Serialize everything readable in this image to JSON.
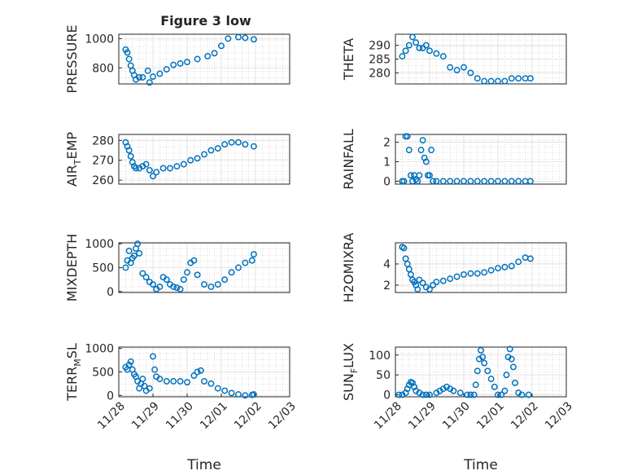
{
  "figure": {
    "title": "Figure 3 low"
  },
  "colors": {
    "marker": "#0072BD",
    "axis": "#262626",
    "grid": "#c6c6c6"
  },
  "chart_data": [
    {
      "type": "scatter",
      "id": "pressure",
      "title": "Figure 3 low",
      "ylabel": "PRESSURE",
      "ylabel_sub": "",
      "ylim": [
        690,
        1030
      ],
      "yticks": [
        800,
        1000
      ],
      "ytick_labels": [
        "800",
        "1000"
      ],
      "xlim": [
        "11/28",
        "12/02"
      ],
      "xticks": [],
      "xlabel": "",
      "grid": true,
      "series": [
        {
          "x": [
            "11/28",
            "11/28",
            "11/28",
            "11/28",
            "11/28",
            "11/28",
            "11/28",
            "11/28",
            "11/28",
            "11/29",
            "11/29",
            "11/29",
            "11/29",
            "11/29",
            "11/29",
            "11/30",
            "11/30",
            "11/30",
            "11/30",
            "12/01",
            "12/01",
            "12/01",
            "12/01",
            "12/02",
            "12/02"
          ],
          "xoff_days": [
            0.2,
            0.25,
            0.3,
            0.35,
            0.4,
            0.45,
            0.5,
            0.6,
            0.7,
            0.85,
            0.9,
            1.0,
            1.2,
            1.4,
            1.6,
            1.8,
            2.0,
            2.3,
            2.6,
            2.8,
            3.0,
            3.2,
            3.5,
            3.7,
            3.95
          ],
          "y": [
            925,
            905,
            860,
            815,
            780,
            750,
            720,
            735,
            735,
            780,
            700,
            740,
            760,
            790,
            820,
            830,
            840,
            860,
            880,
            900,
            950,
            1000,
            1010,
            1005,
            995
          ]
        }
      ]
    },
    {
      "type": "scatter",
      "id": "theta",
      "title": "",
      "ylabel": "THETA",
      "ylabel_sub": "",
      "ylim": [
        276,
        294
      ],
      "yticks": [
        280,
        285,
        290
      ],
      "ytick_labels": [
        "280",
        "285",
        "290"
      ],
      "xlim": [
        "11/28",
        "12/02"
      ],
      "xticks": [],
      "xlabel": "",
      "grid": true,
      "series": [
        {
          "xoff_days": [
            0.2,
            0.3,
            0.4,
            0.5,
            0.6,
            0.7,
            0.8,
            0.9,
            1.0,
            1.2,
            1.4,
            1.6,
            1.8,
            2.0,
            2.2,
            2.4,
            2.6,
            2.8,
            3.0,
            3.2,
            3.4,
            3.6,
            3.8,
            3.95
          ],
          "y": [
            286,
            288,
            290,
            293,
            291,
            289,
            289,
            290,
            288,
            287,
            286,
            282,
            281,
            282,
            280,
            278,
            277,
            277,
            277,
            277,
            278,
            278,
            278,
            278
          ]
        }
      ]
    },
    {
      "type": "scatter",
      "id": "airtemp",
      "title": "",
      "ylabel": "AIR",
      "ylabel_sub": "T",
      "ylabel_rest": "EMP",
      "ylim": [
        258,
        283
      ],
      "yticks": [
        260,
        270,
        280
      ],
      "ytick_labels": [
        "260",
        "270",
        "280"
      ],
      "xlim": [
        "11/28",
        "12/02"
      ],
      "xticks": [],
      "xlabel": "",
      "grid": true,
      "series": [
        {
          "xoff_days": [
            0.2,
            0.25,
            0.3,
            0.35,
            0.4,
            0.45,
            0.5,
            0.6,
            0.7,
            0.8,
            0.9,
            1.0,
            1.1,
            1.3,
            1.5,
            1.7,
            1.9,
            2.1,
            2.3,
            2.5,
            2.7,
            2.9,
            3.1,
            3.3,
            3.5,
            3.7,
            3.95
          ],
          "y": [
            279,
            277,
            275,
            272,
            269,
            267,
            266,
            266,
            267,
            268,
            265,
            262,
            264,
            266,
            266,
            267,
            268,
            270,
            271,
            273,
            275,
            276,
            278,
            279,
            279,
            278,
            277
          ]
        }
      ]
    },
    {
      "type": "scatter",
      "id": "rainfall",
      "title": "",
      "ylabel": "RAINFALL",
      "ylabel_sub": "",
      "ylim": [
        -0.15,
        2.4
      ],
      "yticks": [
        0,
        1,
        2
      ],
      "ytick_labels": [
        "0",
        "1",
        "2"
      ],
      "xlim": [
        "11/28",
        "12/02"
      ],
      "xticks": [],
      "xlabel": "",
      "grid": true,
      "series": [
        {
          "xoff_days": [
            0.2,
            0.25,
            0.3,
            0.35,
            0.4,
            0.45,
            0.5,
            0.55,
            0.6,
            0.65,
            0.7,
            0.75,
            0.8,
            0.85,
            0.9,
            0.95,
            1.0,
            1.05,
            1.1,
            1.2,
            1.4,
            1.6,
            1.8,
            2.0,
            2.2,
            2.4,
            2.6,
            2.8,
            3.0,
            3.2,
            3.4,
            3.6,
            3.8,
            3.95
          ],
          "y": [
            0,
            0,
            2.3,
            2.3,
            1.6,
            0.3,
            0,
            0.3,
            0.1,
            0,
            0.3,
            1.6,
            2.1,
            1.2,
            1.0,
            0.3,
            0.3,
            1.6,
            0,
            0,
            0,
            0,
            0,
            0,
            0,
            0,
            0,
            0,
            0,
            0,
            0,
            0,
            0,
            0
          ]
        }
      ]
    },
    {
      "type": "scatter",
      "id": "mixdepth",
      "title": "",
      "ylabel": "MIXDEPTH",
      "ylabel_sub": "",
      "ylim": [
        -20,
        1020
      ],
      "yticks": [
        0,
        500,
        1000
      ],
      "ytick_labels": [
        "0",
        "500",
        "1000"
      ],
      "xlim": [
        "11/28",
        "12/02"
      ],
      "xticks": [],
      "xlabel": "",
      "grid": true,
      "series": [
        {
          "xoff_days": [
            0.2,
            0.25,
            0.3,
            0.35,
            0.4,
            0.45,
            0.5,
            0.55,
            0.6,
            0.7,
            0.8,
            0.9,
            1.0,
            1.1,
            1.2,
            1.3,
            1.4,
            1.5,
            1.6,
            1.7,
            1.8,
            1.9,
            2.0,
            2.1,
            2.2,
            2.3,
            2.5,
            2.7,
            2.9,
            3.1,
            3.3,
            3.5,
            3.7,
            3.9,
            3.95
          ],
          "y": [
            500,
            650,
            850,
            600,
            700,
            750,
            900,
            1000,
            800,
            380,
            300,
            200,
            150,
            50,
            100,
            300,
            250,
            150,
            100,
            80,
            50,
            250,
            400,
            600,
            650,
            350,
            150,
            100,
            150,
            250,
            400,
            500,
            600,
            650,
            780
          ]
        }
      ]
    },
    {
      "type": "scatter",
      "id": "h2omixra",
      "title": "",
      "ylabel": "H2OMIXRA",
      "ylabel_sub": "",
      "ylim": [
        1.3,
        6
      ],
      "yticks": [
        2,
        4
      ],
      "ytick_labels": [
        "2",
        "4"
      ],
      "xlim": [
        "11/28",
        "12/02"
      ],
      "xticks": [],
      "xlabel": "",
      "grid": true,
      "series": [
        {
          "xoff_days": [
            0.2,
            0.25,
            0.3,
            0.35,
            0.4,
            0.45,
            0.5,
            0.55,
            0.6,
            0.65,
            0.7,
            0.8,
            0.9,
            1.0,
            1.1,
            1.2,
            1.4,
            1.6,
            1.8,
            2.0,
            2.2,
            2.4,
            2.6,
            2.8,
            3.0,
            3.2,
            3.4,
            3.6,
            3.8,
            3.95
          ],
          "y": [
            5.6,
            5.5,
            4.5,
            4.0,
            3.5,
            3.0,
            2.5,
            2.3,
            2.0,
            1.6,
            2.5,
            2.2,
            1.8,
            1.6,
            2.0,
            2.3,
            2.4,
            2.6,
            2.8,
            3.0,
            3.1,
            3.1,
            3.2,
            3.4,
            3.6,
            3.7,
            3.8,
            4.2,
            4.6,
            4.5
          ]
        }
      ]
    },
    {
      "type": "scatter",
      "id": "terrmsl",
      "title": "",
      "ylabel": "TERR",
      "ylabel_sub": "M",
      "ylabel_rest": "SL",
      "ylim": [
        -30,
        1030
      ],
      "yticks": [
        0,
        500,
        1000
      ],
      "ytick_labels": [
        "0",
        "500",
        "1000"
      ],
      "xlim": [
        "11/28",
        "12/03"
      ],
      "xticks": [
        "11/28",
        "11/29",
        "11/30",
        "12/01",
        "12/02",
        "12/03"
      ],
      "xlabel": "Time",
      "grid": true,
      "series": [
        {
          "xoff_days": [
            0.2,
            0.25,
            0.3,
            0.35,
            0.4,
            0.45,
            0.5,
            0.55,
            0.6,
            0.65,
            0.7,
            0.75,
            0.8,
            0.9,
            1.0,
            1.05,
            1.1,
            1.2,
            1.4,
            1.6,
            1.8,
            2.0,
            2.2,
            2.3,
            2.4,
            2.5,
            2.7,
            2.9,
            3.1,
            3.3,
            3.5,
            3.7,
            3.9,
            3.95
          ],
          "y": [
            600,
            550,
            650,
            720,
            550,
            450,
            400,
            300,
            150,
            250,
            350,
            200,
            100,
            150,
            830,
            550,
            400,
            350,
            300,
            300,
            300,
            280,
            420,
            500,
            530,
            300,
            250,
            150,
            100,
            50,
            20,
            0,
            10,
            20
          ]
        }
      ]
    },
    {
      "type": "scatter",
      "id": "sunflux",
      "title": "",
      "ylabel": "SUN",
      "ylabel_sub": "F",
      "ylabel_rest": "LUX",
      "ylim": [
        -5,
        120
      ],
      "yticks": [
        0,
        50,
        100
      ],
      "ytick_labels": [
        "0",
        "50",
        "100"
      ],
      "xlim": [
        "11/28",
        "12/03"
      ],
      "xticks": [
        "11/28",
        "11/29",
        "11/30",
        "12/01",
        "12/02",
        "12/03"
      ],
      "xlabel": "Time",
      "grid": true,
      "series": [
        {
          "xoff_days": [
            0.1,
            0.2,
            0.3,
            0.35,
            0.4,
            0.45,
            0.5,
            0.55,
            0.6,
            0.7,
            0.8,
            0.9,
            1.0,
            1.2,
            1.3,
            1.4,
            1.5,
            1.6,
            1.7,
            1.9,
            2.1,
            2.2,
            2.3,
            2.35,
            2.4,
            2.45,
            2.5,
            2.55,
            2.6,
            2.7,
            2.8,
            2.9,
            3.0,
            3.1,
            3.2,
            3.25,
            3.3,
            3.35,
            3.4,
            3.45,
            3.5,
            3.6,
            3.7,
            3.9
          ],
          "y": [
            0,
            0,
            5,
            15,
            25,
            32,
            30,
            20,
            10,
            5,
            0,
            0,
            0,
            5,
            10,
            15,
            20,
            15,
            10,
            5,
            0,
            0,
            0,
            25,
            60,
            90,
            112,
            95,
            80,
            60,
            40,
            20,
            0,
            0,
            10,
            50,
            95,
            115,
            90,
            70,
            30,
            5,
            0,
            0
          ]
        }
      ]
    }
  ]
}
